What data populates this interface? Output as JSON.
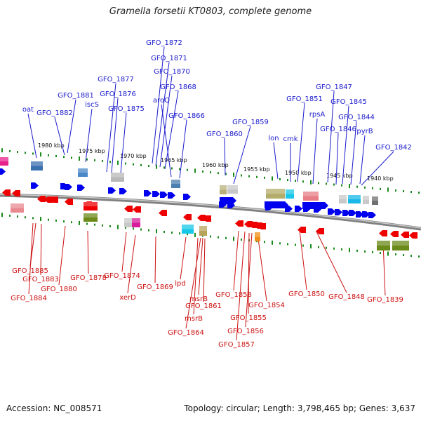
{
  "title": "Gramella forsetii KT0803, complete genome",
  "footer": {
    "accession": "Accession: NC_008571",
    "summary": "Topology: circular; Length: 3,798,465 bp; Genes: 3,637"
  },
  "colors": {
    "forward_gene": "#0000ee",
    "reverse_gene": "#ee0000",
    "top_label": "#1a1acc",
    "bottom_label": "#cc1111",
    "backbone": "#808080",
    "tick": "#1a8a1a"
  },
  "scale_labels": [
    "1980 kbp",
    "1975 kbp",
    "1970 kbp",
    "1965 kbp",
    "1960 kbp",
    "1955 kbp",
    "1950 kbp",
    "1945 kbp",
    "1940 kbp"
  ],
  "top_labels": [
    "GFO_1872",
    "GFO_1871",
    "GFO_1870",
    "GFO_1877",
    "GFO_1868",
    "GFO_1881",
    "GFO_1876",
    "aroQ",
    "iscS",
    "oat",
    "GFO_1882",
    "GFO_1875",
    "GFO_1866",
    "GFO_1859",
    "GFO_1860",
    "GFO_1851",
    "GFO_1847",
    "GFO_1845",
    "rpsA",
    "GFO_1844",
    "lon",
    "cmk",
    "GFO_1846",
    "pyrB",
    "GFO_1842"
  ],
  "bottom_labels": [
    "GFO_1885",
    "GFO_1883",
    "GFO_1884",
    "GFO_1880",
    "GFO_1878",
    "GFO_1874",
    "xerD",
    "GFO_1869",
    "lpd",
    "msrB",
    "GFO_1861",
    "msrB",
    "GFO_1864",
    "GFO_1858",
    "GFO_1855",
    "GFO_1856",
    "GFO_1857",
    "GFO_1854",
    "GFO_1850",
    "GFO_1848",
    "GFO_1839"
  ]
}
